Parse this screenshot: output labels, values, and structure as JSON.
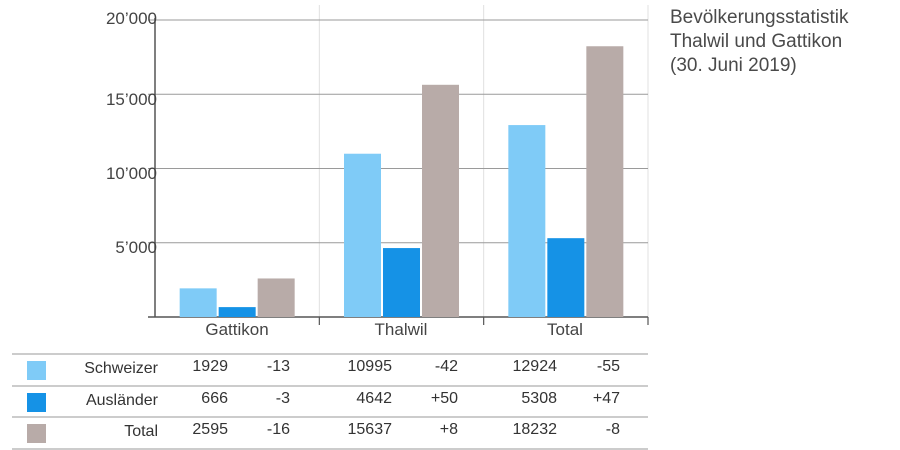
{
  "title_lines": [
    "Bevölkerungsstatistik",
    "Thalwil und Gattikon",
    "(30. Juni 2019)"
  ],
  "colors": {
    "Schweizer": "#7fcbf7",
    "Ausländer": "#1592e6",
    "Total": "#b8aba8"
  },
  "chart_data": {
    "type": "bar",
    "title": "Bevölkerungsstatistik Thalwil und Gattikon (30. Juni 2019)",
    "categories": [
      "Gattikon",
      "Thalwil",
      "Total"
    ],
    "series": [
      {
        "name": "Schweizer",
        "values": [
          1929,
          10995,
          12924
        ],
        "change": [
          "-13",
          "-42",
          "-55"
        ]
      },
      {
        "name": "Ausländer",
        "values": [
          666,
          4642,
          5308
        ],
        "change": [
          "-3",
          "+50",
          "+47"
        ]
      },
      {
        "name": "Total",
        "values": [
          2595,
          15637,
          18232
        ],
        "change": [
          "-16",
          "+8",
          "-8"
        ]
      }
    ],
    "ylim": [
      0,
      20000
    ],
    "yticks": [
      5000,
      10000,
      15000,
      20000
    ],
    "ytick_labels": [
      "5’000",
      "10’000",
      "15’000",
      "20’000"
    ],
    "grid": true,
    "legend": "table below chart"
  }
}
